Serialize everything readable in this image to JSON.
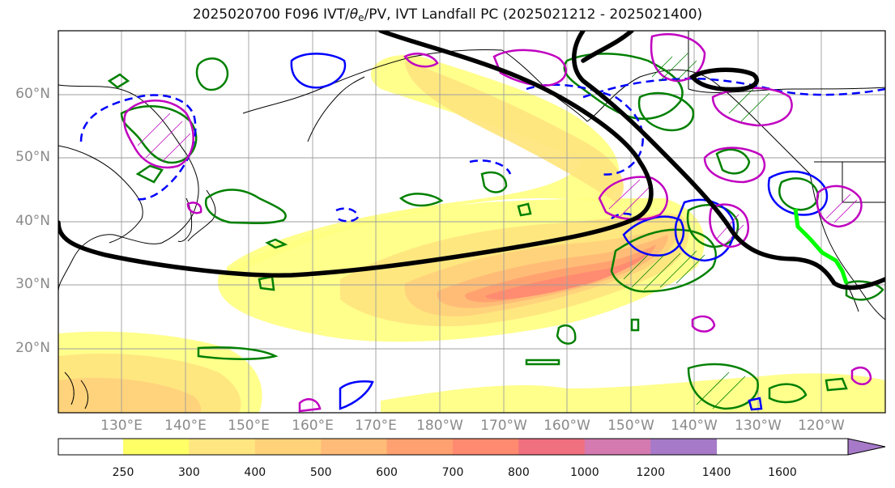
{
  "title": {
    "prefix": "2025020700 F096 IVT/",
    "theta_symbol": "θ",
    "theta_sub": "e",
    "suffix": "/PV, IVT Landfall PC (2025021212 - 2025021400)"
  },
  "map": {
    "lat_ticks": [
      "60°N",
      "50°N",
      "40°N",
      "30°N",
      "20°N"
    ],
    "lon_ticks": [
      "130°E",
      "140°E",
      "150°E",
      "160°E",
      "170°E",
      "180°W",
      "170°W",
      "160°W",
      "150°W",
      "140°W",
      "130°W",
      "120°W"
    ],
    "grid": true,
    "colors": {
      "ivt_fill": [
        "#ffff66",
        "#ffe680",
        "#ffd27a",
        "#ffbb77",
        "#ffa070",
        "#ff8a70",
        "#f07080",
        "#d57ab0",
        "#a67ac8"
      ],
      "coastline": "#000000",
      "thick_contour": "#000000",
      "pv_positive": "#0000ff",
      "theta_e": "#008000",
      "pv_magenta": "#c000c0",
      "landfall": "#00ff00"
    }
  },
  "colorbar": {
    "levels": [
      "250",
      "300",
      "400",
      "500",
      "600",
      "700",
      "800",
      "1000",
      "1200",
      "1400",
      "1600"
    ],
    "colors": [
      "#ffff66",
      "#ffe680",
      "#ffd27a",
      "#ffbb77",
      "#ffa070",
      "#ff8a70",
      "#f07080",
      "#d57ab0",
      "#a67ac8"
    ],
    "extend": "max"
  }
}
